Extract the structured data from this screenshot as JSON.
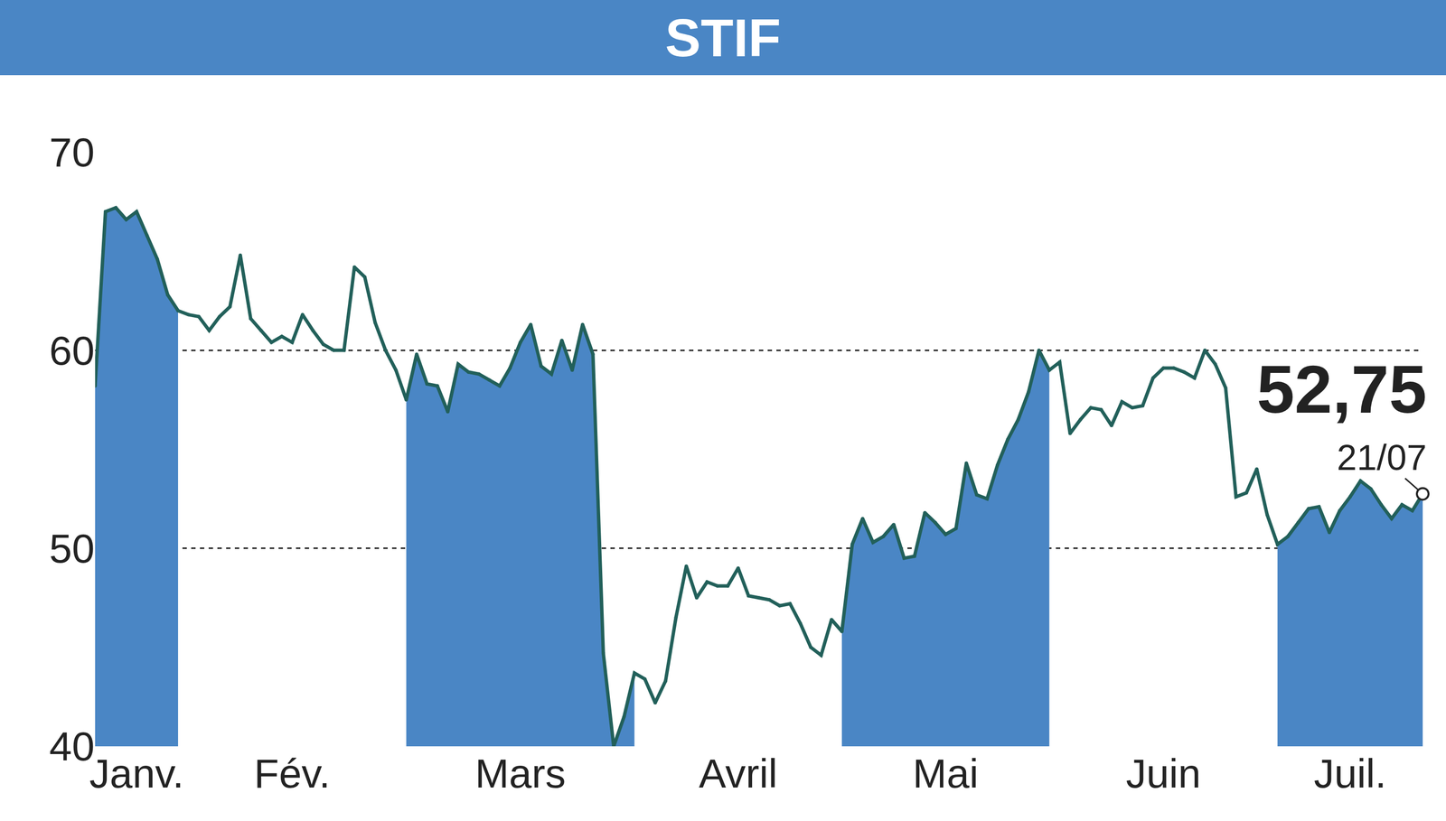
{
  "chart_data": {
    "type": "line",
    "title": "STIF",
    "categories": [
      null,
      null,
      null,
      null,
      "Janv.",
      null,
      null,
      null,
      null,
      null,
      null,
      null,
      null,
      null,
      null,
      null,
      null,
      null,
      null,
      "Fév.",
      null,
      null,
      null,
      null,
      null,
      null,
      null,
      null,
      null,
      null,
      null,
      null,
      null,
      null,
      null,
      null,
      null,
      null,
      null,
      null,
      null,
      "Mars",
      null,
      null,
      null,
      null,
      null,
      null,
      null,
      null,
      null,
      null,
      null,
      null,
      null,
      null,
      null,
      null,
      null,
      null,
      null,
      null,
      "Avril",
      null,
      null,
      null,
      null,
      null,
      null,
      null,
      null,
      null,
      null,
      null,
      null,
      null,
      null,
      null,
      null,
      null,
      null,
      null,
      "Mai",
      null,
      null,
      null,
      null,
      null,
      null,
      null,
      null,
      null,
      null,
      null,
      null,
      null,
      null,
      null,
      null,
      null,
      null,
      null,
      null,
      "Juin",
      null,
      null,
      null,
      null,
      null,
      null,
      null,
      null,
      null,
      null,
      null,
      null,
      null,
      null,
      null,
      null,
      null,
      "Juil.",
      null,
      null,
      null,
      null,
      null,
      null,
      null
    ],
    "values": [
      58.2,
      67.0,
      67.2,
      66.6,
      67.0,
      65.8,
      64.6,
      62.8,
      62.0,
      61.8,
      61.7,
      61.0,
      61.7,
      62.2,
      64.8,
      61.6,
      61.0,
      60.4,
      60.7,
      60.4,
      61.8,
      61.0,
      60.3,
      60.0,
      60.0,
      64.2,
      63.7,
      61.4,
      60.0,
      59.0,
      57.5,
      59.8,
      58.3,
      58.2,
      56.9,
      59.3,
      58.9,
      58.8,
      58.5,
      58.2,
      59.1,
      60.4,
      61.3,
      59.2,
      58.8,
      60.5,
      59.0,
      61.3,
      59.8,
      44.7,
      40.0,
      41.5,
      43.7,
      43.4,
      42.2,
      43.3,
      46.5,
      49.1,
      47.5,
      48.3,
      48.1,
      48.1,
      49.0,
      47.6,
      47.5,
      47.4,
      47.1,
      47.2,
      46.2,
      45.0,
      44.6,
      46.4,
      45.8,
      50.2,
      51.5,
      50.3,
      50.6,
      51.2,
      49.5,
      49.6,
      51.8,
      51.3,
      50.7,
      51.0,
      54.3,
      52.7,
      52.5,
      54.2,
      55.5,
      56.5,
      57.9,
      60.0,
      59.0,
      59.4,
      55.8,
      56.5,
      57.1,
      57.0,
      56.2,
      57.4,
      57.1,
      57.2,
      58.6,
      59.1,
      59.1,
      58.9,
      58.6,
      60.0,
      59.3,
      58.1,
      52.6,
      52.8,
      54.0,
      51.7,
      50.2,
      50.6,
      51.3,
      52.0,
      52.1,
      50.8,
      51.9,
      52.6,
      53.4,
      53.0,
      52.2,
      51.5,
      52.2,
      51.9,
      52.75
    ],
    "color": "#22605a",
    "ylim": [
      40,
      70
    ],
    "yticks": [
      40,
      50,
      60,
      70
    ],
    "grid": true,
    "annotations": [
      {
        "text": "52,75",
        "value": 52.75,
        "date": "21/07"
      }
    ]
  }
}
